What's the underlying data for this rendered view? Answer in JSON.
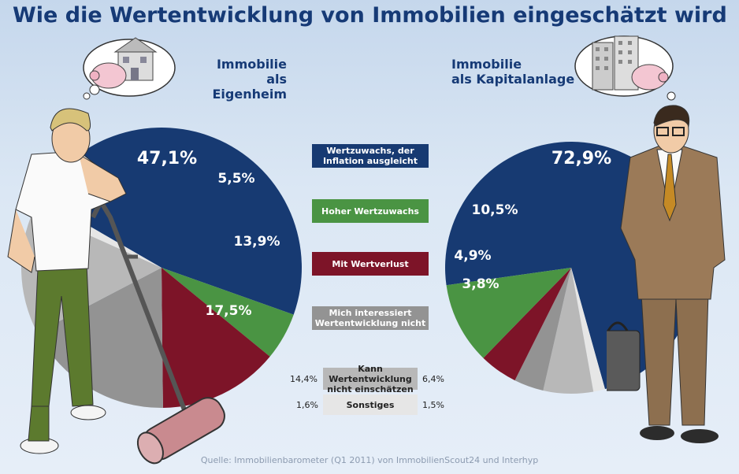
{
  "title": "Wie die Wertentwicklung von Immobilien eingeschätzt wird",
  "source": "Quelle: Immobilienbarometer (Q1 2011) von ImmobilienScout24 und Interhyp",
  "colors": {
    "inflation": "#173a72",
    "hoch": "#4a9443",
    "verlust": "#7d1428",
    "desinteresse": "#939393",
    "unsicher": "#b8b8b8",
    "sonstiges": "#e6e6e6",
    "title": "#163a76"
  },
  "legend": [
    {
      "key": "inflation",
      "label": "Wertzuwachs, der Inflation ausgleicht"
    },
    {
      "key": "hoch",
      "label": "Hoher Wertzuwachs"
    },
    {
      "key": "verlust",
      "label": "Mit Wertverlust"
    },
    {
      "key": "desinteresse",
      "label": "Mich interessiert Wertentwicklung nicht"
    },
    {
      "key": "unsicher",
      "label": "Kann Wertentwicklung nicht einschätzen",
      "left": "14,4%",
      "right": "6,4%"
    },
    {
      "key": "sonstiges",
      "label": "Sonstiges",
      "left": "1,6%",
      "right": "1,5%"
    }
  ],
  "chart_data": [
    {
      "type": "pie",
      "title": "Immobilie als Eigenheim",
      "categories": [
        "Wertzuwachs, der Inflation ausgleicht",
        "Hoher Wertzuwachs",
        "Mit Wertverlust",
        "Mich interessiert Wertentwicklung nicht",
        "Kann Wertentwicklung nicht einschätzen",
        "Sonstiges"
      ],
      "values": [
        47.1,
        5.5,
        13.9,
        17.5,
        14.4,
        1.6
      ],
      "labels": [
        "47,1%",
        "5,5%",
        "13,9%",
        "17,5%",
        "14,4%",
        "1,6%"
      ]
    },
    {
      "type": "pie",
      "title": "Immobilie als Kapitalanlage",
      "categories": [
        "Wertzuwachs, der Inflation ausgleicht",
        "Hoher Wertzuwachs",
        "Mit Wertverlust",
        "Mich interessiert Wertentwicklung nicht",
        "Kann Wertentwicklung nicht einschätzen",
        "Sonstiges"
      ],
      "values": [
        72.9,
        10.5,
        4.9,
        3.8,
        6.4,
        1.5
      ],
      "labels": [
        "72,9%",
        "10,5%",
        "4,9%",
        "3,8%",
        "6,4%",
        "1,5%"
      ]
    }
  ],
  "subtitle_left": [
    "Immobilie",
    "als Eigenheim"
  ],
  "subtitle_right": [
    "Immobilie",
    "als Kapitalanlage"
  ]
}
